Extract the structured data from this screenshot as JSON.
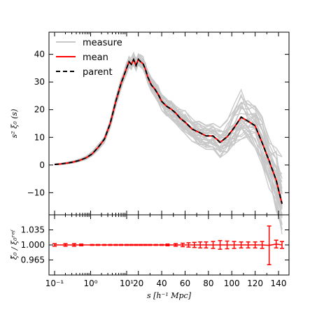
{
  "chart_data": [
    {
      "type": "line",
      "title": "",
      "xlabel": "",
      "ylabel": "s² ξ₀ (s)",
      "x_scale": "piecewise: log for s<10 (10^-1 to 10^1), linear for s>=10",
      "xticks": [
        "10⁻¹",
        "10⁰",
        "10¹",
        "20",
        "40",
        "60",
        "80",
        "100",
        "120",
        "140"
      ],
      "xlim": [
        0.07,
        147
      ],
      "ylim": [
        -18,
        48
      ],
      "yticks": [
        "−10",
        "0",
        "10",
        "20",
        "30",
        "40"
      ],
      "ytick_values": [
        -10,
        0,
        10,
        20,
        30,
        40
      ],
      "grid": false,
      "legend": {
        "placement": "top-left",
        "entries": [
          {
            "label": "measure",
            "color": "#c8c8c8",
            "style": "solid"
          },
          {
            "label": "mean",
            "color": "#ff0000",
            "style": "solid"
          },
          {
            "label": "parent",
            "color": "#000000",
            "style": "dashed"
          }
        ]
      },
      "x": [
        0.1,
        0.15,
        0.22,
        0.33,
        0.5,
        0.75,
        1.1,
        1.6,
        2.4,
        3.5,
        5.0,
        7.0,
        10,
        12,
        14,
        16,
        18,
        20,
        22,
        24,
        26,
        28,
        31,
        34,
        37,
        40,
        44,
        48,
        52,
        56,
        60,
        66,
        72,
        78,
        84,
        90,
        96,
        102,
        108,
        114,
        120,
        126,
        132,
        138,
        143
      ],
      "series": [
        {
          "name": "mean",
          "color": "#ff0000",
          "values": [
            0.2,
            0.4,
            0.7,
            1.1,
            1.7,
            2.6,
            4.0,
            6.3,
            9.3,
            15.0,
            23.0,
            29.5,
            35.0,
            37.3,
            36.4,
            38.1,
            36.0,
            38.2,
            37.3,
            36.6,
            34.7,
            31.9,
            29.0,
            27.5,
            25.5,
            23.0,
            21.3,
            20.2,
            18.8,
            16.8,
            15.5,
            13.0,
            11.8,
            10.5,
            10.5,
            8.2,
            10.2,
            13.5,
            17.3,
            15.8,
            14.2,
            8.0,
            1.5,
            -5.5,
            -14.0
          ]
        },
        {
          "name": "parent",
          "color": "#000000",
          "values": [
            0.2,
            0.4,
            0.7,
            1.1,
            1.7,
            2.6,
            4.0,
            6.3,
            9.3,
            15.0,
            23.0,
            29.5,
            35.0,
            37.3,
            36.4,
            38.1,
            36.0,
            38.2,
            37.3,
            36.6,
            34.7,
            31.9,
            29.0,
            27.5,
            25.5,
            23.0,
            21.3,
            20.2,
            18.8,
            16.8,
            15.5,
            13.0,
            11.8,
            10.5,
            10.5,
            8.2,
            10.2,
            13.5,
            17.3,
            15.8,
            14.2,
            8.0,
            1.5,
            -5.5,
            -14.0
          ]
        }
      ],
      "measure_band": {
        "color": "#c8c8c8",
        "count": 30,
        "spread_upper": [
          0.1,
          0.2,
          0.3,
          0.4,
          0.5,
          0.6,
          0.8,
          1.0,
          1.3,
          1.6,
          1.8,
          2.0,
          2.2,
          2.3,
          2.4,
          2.5,
          2.5,
          2.5,
          2.5,
          2.6,
          2.7,
          2.8,
          3.0,
          3.1,
          3.2,
          3.3,
          3.4,
          3.6,
          3.8,
          4.0,
          4.2,
          4.4,
          4.6,
          4.8,
          5.0,
          6.0,
          7.5,
          9.0,
          11.0,
          9.0,
          8.0,
          9.5,
          11.0,
          13.0,
          17.0
        ],
        "spread_lower": [
          0.1,
          0.2,
          0.3,
          0.4,
          0.5,
          0.6,
          0.8,
          1.0,
          1.3,
          1.6,
          1.8,
          2.0,
          2.0,
          2.0,
          2.0,
          2.0,
          2.0,
          2.0,
          2.0,
          2.0,
          2.2,
          2.4,
          2.6,
          2.8,
          3.0,
          3.2,
          3.4,
          3.6,
          3.8,
          4.0,
          4.2,
          4.4,
          4.6,
          4.8,
          5.0,
          5.5,
          6.0,
          7.0,
          8.0,
          7.0,
          8.0,
          9.0,
          10.0,
          11.0,
          11.0
        ]
      }
    },
    {
      "type": "line",
      "title": "",
      "xlabel": "s [h⁻¹ Mpc]",
      "ylabel": "ξ̃₀ / ξ₀ʳᵉᶠ",
      "xticks": [
        "10⁻¹",
        "10⁰",
        "10¹",
        "20",
        "40",
        "60",
        "80",
        "100",
        "120",
        "140"
      ],
      "yticks": [
        "1.035",
        "1.000",
        "0.965"
      ],
      "ytick_values": [
        1.035,
        1.0,
        0.965
      ],
      "ylim": [
        0.93,
        1.07
      ],
      "grid": false,
      "series": [
        {
          "name": "ratio",
          "color": "#ff0000",
          "x": [
            0.1,
            0.2,
            0.35,
            0.55,
            1.1,
            1.6,
            2.4,
            3.5,
            5.0,
            7.0,
            10,
            14,
            18,
            22,
            26,
            30,
            35,
            40,
            45,
            52,
            58,
            63,
            68,
            73,
            78,
            84,
            90,
            96,
            102,
            108,
            114,
            120,
            126,
            132,
            138,
            143
          ],
          "values": [
            1.0,
            1.0,
            1.0,
            1.0,
            1.0,
            1.0,
            1.0,
            1.0,
            1.0,
            1.0,
            1.0,
            1.0,
            1.0,
            1.0,
            1.0,
            1.0,
            1.0,
            1.0,
            1.0,
            1.0,
            1.0,
            1.0,
            1.0,
            1.0,
            1.0,
            1.0,
            1.0,
            1.0,
            1.0,
            1.0,
            1.0,
            1.0,
            1.0,
            0.999,
            1.002,
            1.0
          ],
          "errors": [
            0.003,
            0.003,
            0.003,
            0.002,
            0.001,
            0.001,
            0.001,
            0.001,
            0.001,
            0.001,
            0.001,
            0.001,
            0.001,
            0.001,
            0.001,
            0.001,
            0.001,
            0.001,
            0.002,
            0.003,
            0.004,
            0.005,
            0.006,
            0.007,
            0.007,
            0.008,
            0.01,
            0.009,
            0.008,
            0.007,
            0.007,
            0.007,
            0.008,
            0.045,
            0.009,
            0.008
          ]
        }
      ]
    }
  ]
}
